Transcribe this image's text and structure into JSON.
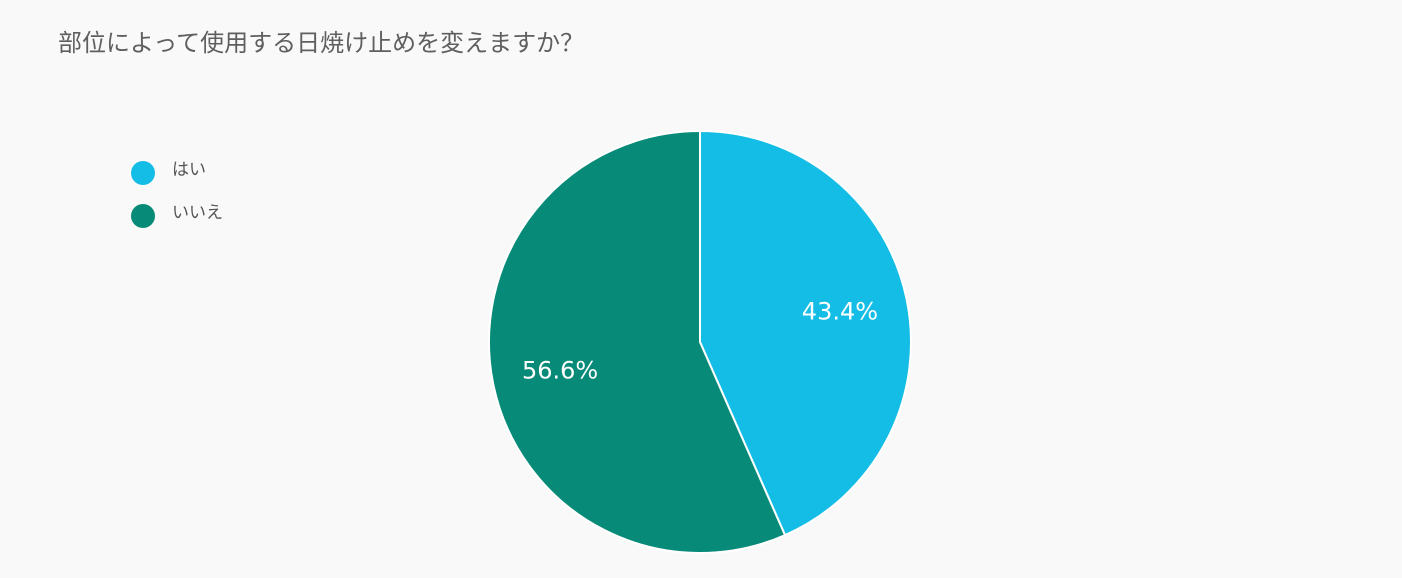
{
  "chart_data": {
    "type": "pie",
    "title": "部位によって使用する日焼け止めを変えますか？",
    "categories": [
      "はい",
      "いいえ"
    ],
    "values": [
      43.4,
      56.6
    ],
    "value_labels": [
      "43.4%",
      "56.6%"
    ],
    "colors": [
      "#14bde5",
      "#078a77"
    ],
    "legend": "left"
  }
}
